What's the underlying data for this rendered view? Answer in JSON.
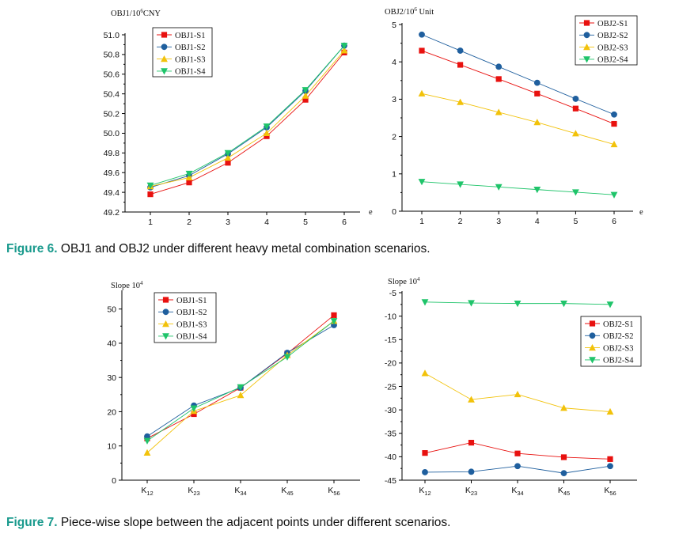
{
  "captions": {
    "fig6_label": "Figure 6.",
    "fig6_text": " OBJ1 and OBJ2 under different heavy metal combination scenarios.",
    "fig7_label": "Figure 7.",
    "fig7_text": " Piece-wise slope between the adjacent points under different scenarios."
  },
  "colors": {
    "S1": "#e8110f",
    "S2": "#1f5f9e",
    "S3": "#f2c20a",
    "S4": "#1fc46a"
  },
  "chart_data": [
    {
      "id": "fig6-obj1",
      "type": "line",
      "ylabel": "OBJ1/10⁶CNY",
      "xlabel": "e",
      "x": [
        1,
        2,
        3,
        4,
        5,
        6
      ],
      "xticklabels": [
        "1",
        "2",
        "3",
        "4",
        "5",
        "6"
      ],
      "ylim": [
        49.2,
        51.0
      ],
      "yticks": [
        49.2,
        49.4,
        49.6,
        49.8,
        50.0,
        50.2,
        50.4,
        50.6,
        50.8,
        51.0
      ],
      "yticklabels": [
        "49.2",
        "49.4",
        "49.6",
        "49.8",
        "50.0",
        "50.2",
        "50.4",
        "50.6",
        "50.8",
        "51.0"
      ],
      "legend_position": "top-left",
      "series": [
        {
          "name": "OBJ1-S1",
          "key": "S1",
          "marker": "square",
          "values": [
            49.38,
            49.5,
            49.7,
            49.97,
            50.34,
            50.82
          ]
        },
        {
          "name": "OBJ1-S2",
          "key": "S2",
          "marker": "circle",
          "values": [
            49.45,
            49.57,
            49.79,
            50.06,
            50.43,
            50.89
          ]
        },
        {
          "name": "OBJ1-S3",
          "key": "S3",
          "marker": "triangle-up",
          "values": [
            49.46,
            49.55,
            49.75,
            50.0,
            50.38,
            50.84
          ]
        },
        {
          "name": "OBJ1-S4",
          "key": "S4",
          "marker": "triangle-down",
          "values": [
            49.47,
            49.59,
            49.8,
            50.07,
            50.44,
            50.89
          ]
        }
      ]
    },
    {
      "id": "fig6-obj2",
      "type": "line",
      "ylabel": "OBJ2/10⁶ Unit",
      "xlabel": "e",
      "x": [
        1,
        2,
        3,
        4,
        5,
        6
      ],
      "xticklabels": [
        "1",
        "2",
        "3",
        "4",
        "5",
        "6"
      ],
      "ylim": [
        0,
        5
      ],
      "yticks": [
        0,
        1,
        2,
        3,
        4,
        5
      ],
      "yticklabels": [
        "0",
        "1",
        "2",
        "3",
        "4",
        "5"
      ],
      "legend_position": "top-right",
      "series": [
        {
          "name": "OBJ2-S1",
          "key": "S1",
          "marker": "square",
          "values": [
            4.3,
            3.92,
            3.54,
            3.15,
            2.75,
            2.34
          ]
        },
        {
          "name": "OBJ2-S2",
          "key": "S2",
          "marker": "circle",
          "values": [
            4.73,
            4.3,
            3.87,
            3.44,
            3.01,
            2.59
          ]
        },
        {
          "name": "OBJ2-S3",
          "key": "S3",
          "marker": "triangle-up",
          "values": [
            3.15,
            2.92,
            2.65,
            2.38,
            2.08,
            1.79
          ]
        },
        {
          "name": "OBJ2-S4",
          "key": "S4",
          "marker": "triangle-down",
          "values": [
            0.79,
            0.72,
            0.65,
            0.58,
            0.51,
            0.44
          ]
        }
      ]
    },
    {
      "id": "fig7-obj1",
      "type": "line",
      "ylabel": "Slope 10⁴",
      "xlabel": "",
      "x": [
        1,
        2,
        3,
        4,
        5
      ],
      "xticklabels": [
        "K12",
        "K23",
        "K34",
        "K45",
        "K56"
      ],
      "ylim": [
        0,
        55
      ],
      "yticks": [
        0,
        10,
        20,
        30,
        40,
        50
      ],
      "yticklabels": [
        "0",
        "10",
        "20",
        "30",
        "40",
        "50"
      ],
      "legend_position": "top-left",
      "series": [
        {
          "name": "OBJ1-S1",
          "key": "S1",
          "marker": "square",
          "values": [
            12.2,
            19.3,
            27.0,
            37.0,
            48.2
          ]
        },
        {
          "name": "OBJ1-S2",
          "key": "S2",
          "marker": "circle",
          "values": [
            12.8,
            21.8,
            27.0,
            37.2,
            45.3
          ]
        },
        {
          "name": "OBJ1-S3",
          "key": "S3",
          "marker": "triangle-up",
          "values": [
            8.0,
            20.2,
            24.8,
            36.5,
            46.5
          ]
        },
        {
          "name": "OBJ1-S4",
          "key": "S4",
          "marker": "triangle-down",
          "values": [
            11.5,
            21.0,
            27.2,
            36.0,
            46.5
          ]
        }
      ]
    },
    {
      "id": "fig7-obj2",
      "type": "line",
      "ylabel": "Slope 10⁴",
      "xlabel": "",
      "x": [
        1,
        2,
        3,
        4,
        5
      ],
      "xticklabels": [
        "K12",
        "K23",
        "K34",
        "K45",
        "K56"
      ],
      "ylim": [
        -45,
        -5
      ],
      "yticks": [
        -45,
        -40,
        -35,
        -30,
        -25,
        -20,
        -15,
        -10,
        -5
      ],
      "yticklabels": [
        "-45",
        "-40",
        "-35",
        "-30",
        "-25",
        "-20",
        "-15",
        "-10",
        "-5"
      ],
      "legend_position": "right",
      "series": [
        {
          "name": "OBJ2-S1",
          "key": "S1",
          "marker": "square",
          "values": [
            -39.2,
            -37.0,
            -39.3,
            -40.1,
            -40.5
          ]
        },
        {
          "name": "OBJ2-S2",
          "key": "S2",
          "marker": "circle",
          "values": [
            -43.3,
            -43.2,
            -42.0,
            -43.5,
            -42.0
          ]
        },
        {
          "name": "OBJ2-S3",
          "key": "S3",
          "marker": "triangle-up",
          "values": [
            -22.2,
            -27.8,
            -26.7,
            -29.6,
            -30.4
          ]
        },
        {
          "name": "OBJ2-S4",
          "key": "S4",
          "marker": "triangle-down",
          "values": [
            -7.0,
            -7.2,
            -7.3,
            -7.3,
            -7.5
          ]
        }
      ]
    }
  ]
}
